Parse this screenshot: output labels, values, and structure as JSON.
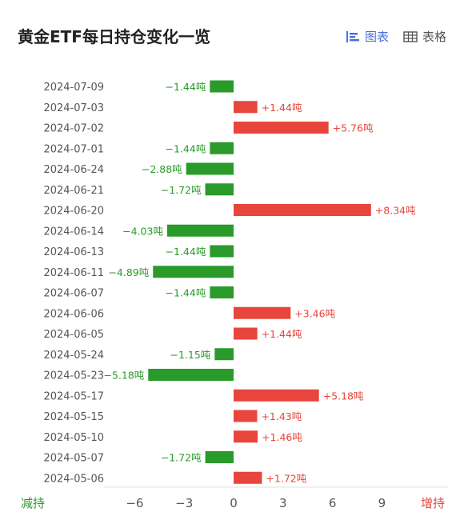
{
  "title": "黄金ETF每日持仓变化一览",
  "tabs": [
    {
      "label": "图表",
      "icon": "bar-chart-icon",
      "active": true
    },
    {
      "label": "表格",
      "icon": "table-icon",
      "active": false
    }
  ],
  "legend": {
    "decrease": "减持",
    "increase": "增持"
  },
  "colors": {
    "increase": "#e8453c",
    "decrease": "#2a9a2a",
    "active_tab": "#4a6fd8"
  },
  "chart_data": {
    "type": "bar",
    "orientation": "horizontal",
    "unit": "吨",
    "categories": [
      "2024-07-09",
      "2024-07-03",
      "2024-07-02",
      "2024-07-01",
      "2024-06-24",
      "2024-06-21",
      "2024-06-20",
      "2024-06-14",
      "2024-06-13",
      "2024-06-11",
      "2024-06-07",
      "2024-06-06",
      "2024-06-05",
      "2024-05-24",
      "2024-05-23",
      "2024-05-17",
      "2024-05-15",
      "2024-05-10",
      "2024-05-07",
      "2024-05-06"
    ],
    "values": [
      -1.44,
      1.44,
      5.76,
      -1.44,
      -2.88,
      -1.72,
      8.34,
      -4.03,
      -1.44,
      -4.89,
      -1.44,
      3.46,
      1.44,
      -1.15,
      -5.18,
      5.18,
      1.43,
      1.46,
      -1.72,
      1.72
    ],
    "labels": [
      "−1.44吨",
      "+1.44吨",
      "+5.76吨",
      "−1.44吨",
      "−2.88吨",
      "−1.72吨",
      "+8.34吨",
      "−4.03吨",
      "−1.44吨",
      "−4.89吨",
      "−1.44吨",
      "+3.46吨",
      "+1.44吨",
      "−1.15吨",
      "−5.18吨",
      "+5.18吨",
      "+1.43吨",
      "+1.46吨",
      "−1.72吨",
      "+1.72吨"
    ],
    "xticks": [
      -6,
      -3,
      0,
      3,
      6,
      9
    ],
    "xtick_labels": [
      "−6",
      "−3",
      "0",
      "3",
      "6",
      "9"
    ],
    "xlim": [
      -6,
      9
    ],
    "grid": false
  }
}
